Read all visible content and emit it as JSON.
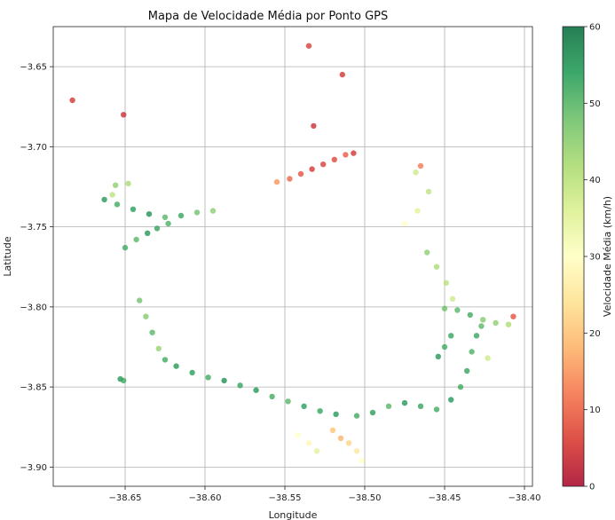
{
  "chart_data": {
    "type": "scatter",
    "title": "Mapa de Velocidade Média por Ponto GPS",
    "xlabel": "Longitude",
    "ylabel": "Latitude",
    "colorbar_label": "Velocidade Média (km/h)",
    "xlim": [
      -38.695,
      -38.395
    ],
    "ylim": [
      -3.912,
      -3.625
    ],
    "clim": [
      0,
      60
    ],
    "x_ticks": [
      -38.65,
      -38.6,
      -38.55,
      -38.5,
      -38.45,
      -38.4
    ],
    "x_tick_labels": [
      "−38.65",
      "−38.60",
      "−38.55",
      "−38.50",
      "−38.45",
      "−38.40"
    ],
    "y_ticks": [
      -3.65,
      -3.7,
      -3.75,
      -3.8,
      -3.85,
      -3.9
    ],
    "y_tick_labels": [
      "−3.65",
      "−3.70",
      "−3.75",
      "−3.80",
      "−3.85",
      "−3.90"
    ],
    "colorbar_ticks": [
      0,
      10,
      20,
      30,
      40,
      50,
      60
    ],
    "colorbar_tick_labels": [
      "0",
      "10",
      "20",
      "30",
      "40",
      "50",
      "60"
    ],
    "colormap": [
      "#a50026",
      "#d73027",
      "#f46d43",
      "#fdae61",
      "#fee08b",
      "#ffffbf",
      "#d9ef8b",
      "#a6d96a",
      "#66bd63",
      "#1a9850",
      "#006837"
    ],
    "grid": true,
    "marker_alpha": 0.75,
    "series": [
      {
        "points": [
          [
            -38.683,
            -3.671,
            5
          ],
          [
            -38.651,
            -3.68,
            4
          ],
          [
            -38.535,
            -3.637,
            6
          ],
          [
            -38.514,
            -3.655,
            5
          ],
          [
            -38.532,
            -3.687,
            4
          ],
          [
            -38.663,
            -3.733,
            55
          ],
          [
            -38.655,
            -3.736,
            52
          ],
          [
            -38.645,
            -3.739,
            54
          ],
          [
            -38.635,
            -3.742,
            56
          ],
          [
            -38.625,
            -3.744,
            50
          ],
          [
            -38.615,
            -3.743,
            53
          ],
          [
            -38.605,
            -3.741,
            48
          ],
          [
            -38.595,
            -3.74,
            45
          ],
          [
            -38.65,
            -3.763,
            52
          ],
          [
            -38.643,
            -3.758,
            50
          ],
          [
            -38.636,
            -3.754,
            55
          ],
          [
            -38.63,
            -3.751,
            53
          ],
          [
            -38.623,
            -3.748,
            51
          ],
          [
            -38.656,
            -3.724,
            45
          ],
          [
            -38.648,
            -3.723,
            42
          ],
          [
            -38.658,
            -3.73,
            40
          ],
          [
            -38.641,
            -3.796,
            48
          ],
          [
            -38.637,
            -3.806,
            46
          ],
          [
            -38.633,
            -3.816,
            50
          ],
          [
            -38.629,
            -3.826,
            44
          ],
          [
            -38.625,
            -3.833,
            52
          ],
          [
            -38.618,
            -3.837,
            55
          ],
          [
            -38.608,
            -3.841,
            54
          ],
          [
            -38.598,
            -3.844,
            52
          ],
          [
            -38.588,
            -3.846,
            56
          ],
          [
            -38.578,
            -3.849,
            53
          ],
          [
            -38.568,
            -3.852,
            55
          ],
          [
            -38.558,
            -3.856,
            52
          ],
          [
            -38.548,
            -3.859,
            50
          ],
          [
            -38.538,
            -3.862,
            54
          ],
          [
            -38.528,
            -3.865,
            53
          ],
          [
            -38.518,
            -3.867,
            55
          ],
          [
            -38.505,
            -3.868,
            52
          ],
          [
            -38.495,
            -3.866,
            54
          ],
          [
            -38.485,
            -3.862,
            50
          ],
          [
            -38.475,
            -3.86,
            55
          ],
          [
            -38.465,
            -3.862,
            53
          ],
          [
            -38.455,
            -3.864,
            52
          ],
          [
            -38.446,
            -3.858,
            55
          ],
          [
            -38.44,
            -3.85,
            52
          ],
          [
            -38.436,
            -3.84,
            53
          ],
          [
            -38.433,
            -3.828,
            51
          ],
          [
            -38.43,
            -3.818,
            53
          ],
          [
            -38.427,
            -3.812,
            50
          ],
          [
            -38.653,
            -3.845,
            55
          ],
          [
            -38.651,
            -3.846,
            52
          ],
          [
            -38.454,
            -3.831,
            55
          ],
          [
            -38.45,
            -3.825,
            52
          ],
          [
            -38.446,
            -3.818,
            53
          ],
          [
            -38.45,
            -3.801,
            48
          ],
          [
            -38.442,
            -3.802,
            50
          ],
          [
            -38.434,
            -3.805,
            52
          ],
          [
            -38.426,
            -3.808,
            46
          ],
          [
            -38.418,
            -3.81,
            45
          ],
          [
            -38.41,
            -3.811,
            42
          ],
          [
            -38.407,
            -3.806,
            8
          ],
          [
            -38.423,
            -3.832,
            38
          ],
          [
            -38.461,
            -3.766,
            45
          ],
          [
            -38.455,
            -3.775,
            42
          ],
          [
            -38.449,
            -3.785,
            40
          ],
          [
            -38.445,
            -3.795,
            38
          ],
          [
            -38.475,
            -3.748,
            30
          ],
          [
            -38.467,
            -3.74,
            35
          ],
          [
            -38.46,
            -3.728,
            40
          ],
          [
            -38.468,
            -3.716,
            38
          ],
          [
            -38.465,
            -3.712,
            12
          ],
          [
            -38.555,
            -3.722,
            15
          ],
          [
            -38.547,
            -3.72,
            10
          ],
          [
            -38.54,
            -3.717,
            8
          ],
          [
            -38.533,
            -3.714,
            5
          ],
          [
            -38.526,
            -3.711,
            6
          ],
          [
            -38.519,
            -3.708,
            7
          ],
          [
            -38.512,
            -3.705,
            9
          ],
          [
            -38.507,
            -3.704,
            5
          ],
          [
            -38.52,
            -3.877,
            20
          ],
          [
            -38.515,
            -3.882,
            18
          ],
          [
            -38.51,
            -3.885,
            22
          ],
          [
            -38.505,
            -3.89,
            25
          ],
          [
            -38.502,
            -3.896,
            30
          ],
          [
            -38.53,
            -3.89,
            35
          ],
          [
            -38.535,
            -3.885,
            28
          ],
          [
            -38.542,
            -3.88,
            30
          ]
        ]
      }
    ]
  }
}
